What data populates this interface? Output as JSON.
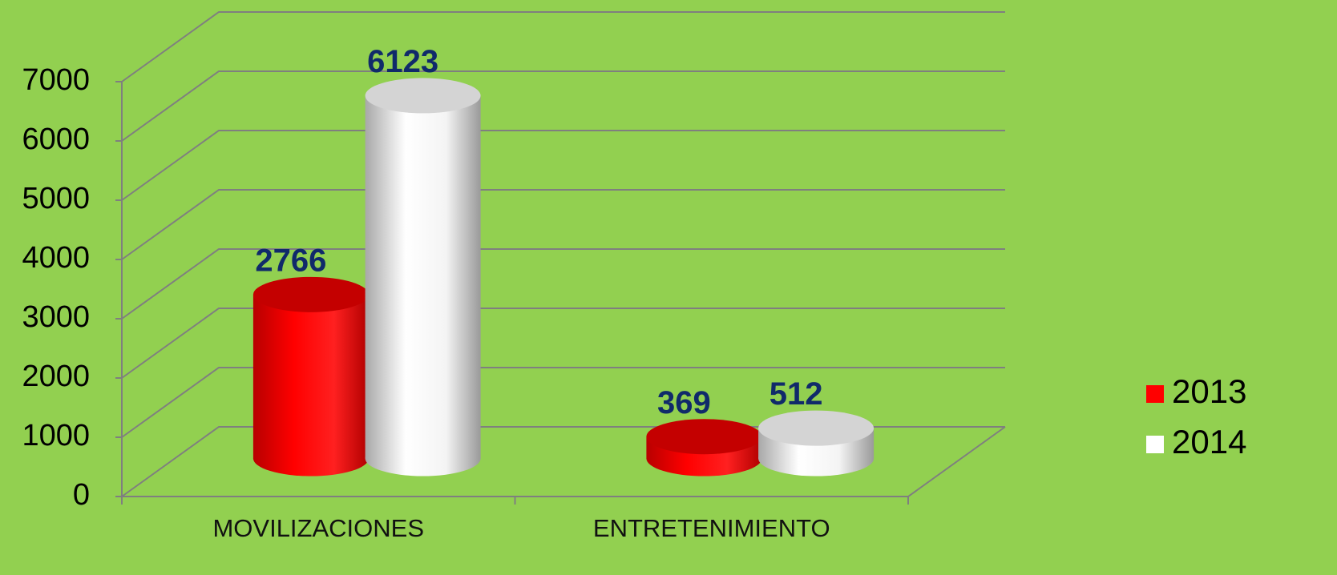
{
  "chart_data": {
    "type": "bar3d",
    "categories": [
      "MOVILIZACIONES",
      "ENTRETENIMIENTO"
    ],
    "series": [
      {
        "name": "2013",
        "color": "#ff0000",
        "values": [
          2766,
          369
        ]
      },
      {
        "name": "2014",
        "color": "#ffffff",
        "values": [
          6123,
          512
        ]
      }
    ],
    "ylim": [
      0,
      7000
    ],
    "yticks": [
      0,
      1000,
      2000,
      3000,
      4000,
      5000,
      6000,
      7000
    ],
    "grid": true,
    "legend": "right"
  }
}
